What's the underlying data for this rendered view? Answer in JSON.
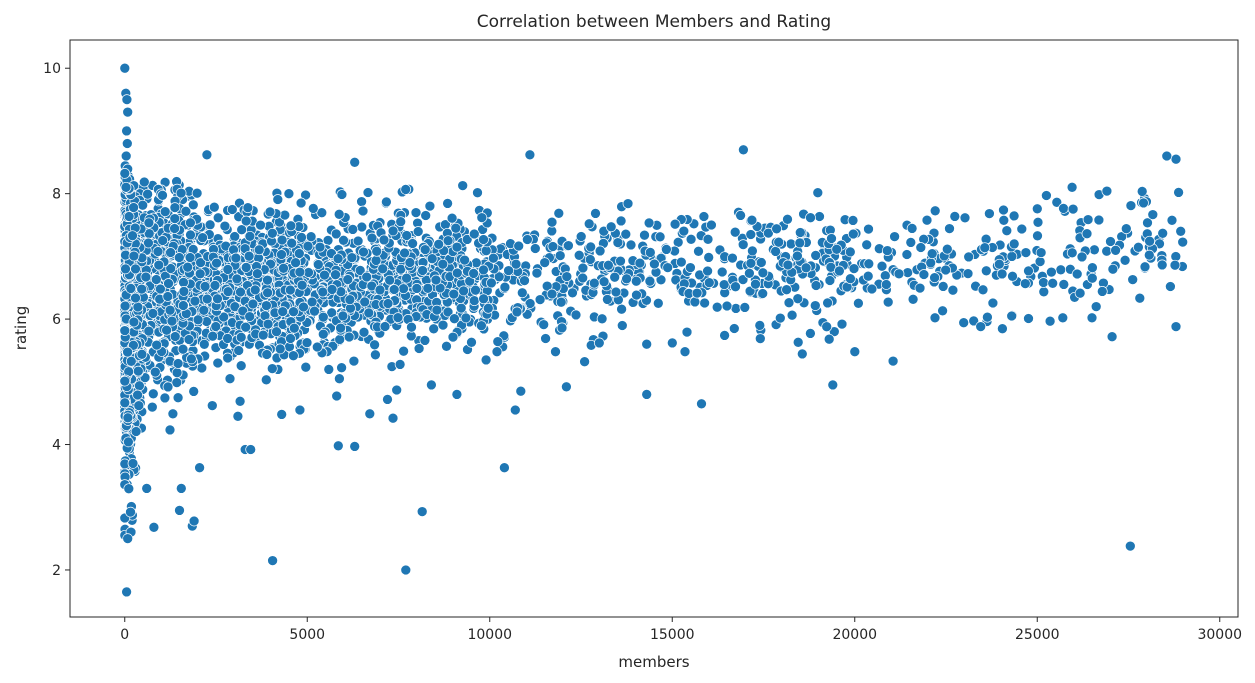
{
  "chart_data": {
    "type": "scatter",
    "title": "Correlation between Members and Rating",
    "xlabel": "members",
    "ylabel": "rating",
    "xlim": [
      -1500,
      30500
    ],
    "ylim": [
      1.25,
      10.45
    ],
    "xticks": [
      0,
      5000,
      10000,
      15000,
      20000,
      25000,
      30000
    ],
    "xtick_labels": [
      "0",
      "5000",
      "10000",
      "15000",
      "20000",
      "25000",
      "30000"
    ],
    "yticks": [
      2,
      4,
      6,
      8,
      10
    ],
    "ytick_labels": [
      "2",
      "4",
      "6",
      "8",
      "10"
    ],
    "grid": false,
    "legend": "none",
    "color": "#1f77b4",
    "outliers": [
      {
        "x": 0,
        "y": 10.0
      },
      {
        "x": 30,
        "y": 9.6
      },
      {
        "x": 60,
        "y": 9.5
      },
      {
        "x": 80,
        "y": 9.3
      },
      {
        "x": 50,
        "y": 9.0
      },
      {
        "x": 70,
        "y": 8.8
      },
      {
        "x": 40,
        "y": 8.6
      },
      {
        "x": 2250,
        "y": 8.62
      },
      {
        "x": 11100,
        "y": 8.62
      },
      {
        "x": 16950,
        "y": 8.7
      },
      {
        "x": 6300,
        "y": 8.5
      },
      {
        "x": 28800,
        "y": 8.55
      },
      {
        "x": 28550,
        "y": 8.6
      },
      {
        "x": 50,
        "y": 1.65
      },
      {
        "x": 80,
        "y": 2.5
      },
      {
        "x": 4050,
        "y": 2.15
      },
      {
        "x": 7700,
        "y": 2.0
      },
      {
        "x": 8150,
        "y": 2.93
      },
      {
        "x": 27550,
        "y": 2.38
      },
      {
        "x": 1500,
        "y": 2.95
      },
      {
        "x": 1850,
        "y": 2.7
      },
      {
        "x": 1900,
        "y": 2.78
      },
      {
        "x": 800,
        "y": 2.68
      },
      {
        "x": 3300,
        "y": 3.92
      },
      {
        "x": 3450,
        "y": 3.92
      },
      {
        "x": 5850,
        "y": 3.98
      },
      {
        "x": 6300,
        "y": 3.97
      },
      {
        "x": 10400,
        "y": 3.63
      },
      {
        "x": 2050,
        "y": 3.63
      },
      {
        "x": 1550,
        "y": 3.3
      },
      {
        "x": 600,
        "y": 3.3
      },
      {
        "x": 7350,
        "y": 4.42
      },
      {
        "x": 7450,
        "y": 4.87
      },
      {
        "x": 7200,
        "y": 4.72
      },
      {
        "x": 9100,
        "y": 4.8
      },
      {
        "x": 8400,
        "y": 4.95
      },
      {
        "x": 10700,
        "y": 4.55
      },
      {
        "x": 10850,
        "y": 4.85
      },
      {
        "x": 12100,
        "y": 4.92
      },
      {
        "x": 14300,
        "y": 4.8
      },
      {
        "x": 15800,
        "y": 4.65
      },
      {
        "x": 19400,
        "y": 4.95
      },
      {
        "x": 4800,
        "y": 4.55
      },
      {
        "x": 4300,
        "y": 4.48
      },
      {
        "x": 3100,
        "y": 4.45
      },
      {
        "x": 2400,
        "y": 4.62
      },
      {
        "x": 21050,
        "y": 5.33
      },
      {
        "x": 20000,
        "y": 5.48
      },
      {
        "x": 27050,
        "y": 5.72
      },
      {
        "x": 28800,
        "y": 5.88
      },
      {
        "x": 23450,
        "y": 5.88
      },
      {
        "x": 26500,
        "y": 6.02
      },
      {
        "x": 25700,
        "y": 6.02
      },
      {
        "x": 24300,
        "y": 6.05
      },
      {
        "x": 22200,
        "y": 6.02
      },
      {
        "x": 19650,
        "y": 5.92
      },
      {
        "x": 18450,
        "y": 5.63
      },
      {
        "x": 19300,
        "y": 5.68
      },
      {
        "x": 15350,
        "y": 5.48
      },
      {
        "x": 14300,
        "y": 5.6
      },
      {
        "x": 13000,
        "y": 5.62
      },
      {
        "x": 12600,
        "y": 5.32
      },
      {
        "x": 11800,
        "y": 5.48
      },
      {
        "x": 10200,
        "y": 5.48
      },
      {
        "x": 9500,
        "y": 5.63
      },
      {
        "x": 9900,
        "y": 5.35
      },
      {
        "x": 15000,
        "y": 5.62
      },
      {
        "x": 16700,
        "y": 5.85
      },
      {
        "x": 17400,
        "y": 5.9
      }
    ],
    "sample_size": 3600,
    "seed": 12345
  }
}
